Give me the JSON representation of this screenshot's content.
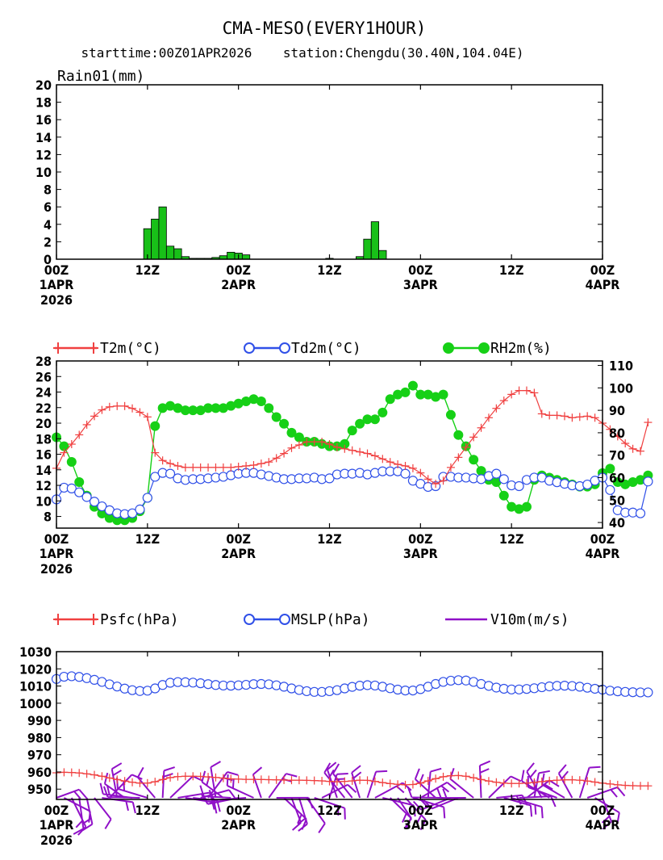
{
  "title": "CMA-MESO(EVERY1HOUR)",
  "subtitle": "starttime:00Z01APR2026    station:Chengdu(30.40N,104.04E)",
  "xticks": {
    "top": [
      "00Z",
      "12Z",
      "00Z",
      "12Z",
      "00Z",
      "12Z",
      "00Z"
    ],
    "mid": [
      "1APR",
      "",
      "2APR",
      "",
      "3APR",
      "",
      "4APR"
    ],
    "bot": [
      "2026",
      "",
      "",
      "",
      "",
      "",
      ""
    ]
  },
  "colors": {
    "temp": "#f04040",
    "dew": "#3050e8",
    "rh": "#16d016",
    "rain": "#18c018",
    "wind": "#9010c8"
  },
  "chart_data": [
    {
      "type": "bar",
      "label": "Rain01(mm)",
      "ylim": [
        0,
        20
      ],
      "yticks": [
        0,
        2,
        4,
        6,
        8,
        10,
        12,
        14,
        16,
        18,
        20
      ],
      "x_hours": [
        12,
        13,
        14,
        15,
        16,
        17,
        18,
        19,
        20,
        21,
        22,
        23,
        24,
        25,
        26,
        27,
        28,
        29,
        30,
        31,
        32,
        33,
        34,
        35,
        36,
        37,
        38,
        39,
        40,
        41,
        42,
        43,
        44
      ],
      "values": [
        3.5,
        4.6,
        6.0,
        1.5,
        1.2,
        0.3,
        0.1,
        0.1,
        0.1,
        0.2,
        0.4,
        0.8,
        0.7,
        0.5,
        0,
        0,
        0,
        0,
        0,
        0,
        0,
        0,
        0,
        0,
        0.1,
        0,
        0,
        0,
        0.3,
        2.3,
        4.3,
        1.0,
        0
      ]
    },
    {
      "type": "line",
      "ylim_left": [
        6.5,
        28
      ],
      "yticks_left": [
        8,
        10,
        12,
        14,
        16,
        18,
        20,
        22,
        24,
        26,
        28
      ],
      "ylim_right": [
        37.5,
        112
      ],
      "yticks_right": [
        40,
        50,
        60,
        70,
        80,
        90,
        100,
        110
      ],
      "series": [
        {
          "name": "T2m(°C)",
          "axis": "left",
          "values": [
            14.2,
            16.2,
            17.3,
            18.5,
            19.8,
            20.9,
            21.7,
            22.1,
            22.2,
            22.2,
            21.9,
            21.4,
            20.8,
            16.2,
            15.2,
            14.8,
            14.5,
            14.3,
            14.3,
            14.3,
            14.3,
            14.3,
            14.3,
            14.3,
            14.4,
            14.5,
            14.6,
            14.8,
            15.0,
            15.5,
            16.1,
            16.8,
            17.2,
            17.6,
            17.6,
            17.6,
            17.3,
            16.9,
            16.7,
            16.5,
            16.3,
            16.1,
            15.8,
            15.4,
            15.0,
            14.7,
            14.5,
            14.2,
            13.6,
            12.8,
            12.2,
            12.6,
            14.3,
            15.6,
            16.9,
            18.2,
            19.4,
            20.7,
            21.9,
            22.9,
            23.7,
            24.2,
            24.2,
            23.9,
            21.2,
            21.0,
            21.0,
            20.9,
            20.7,
            20.8,
            20.9,
            20.7,
            20.0,
            19.2,
            18.3,
            17.4,
            16.7,
            16.4,
            20.1
          ]
        },
        {
          "name": "Td2m(°C)",
          "axis": "left",
          "values": [
            10.2,
            11.7,
            11.6,
            11.1,
            10.5,
            9.9,
            9.3,
            8.8,
            8.4,
            8.3,
            8.4,
            8.9,
            10.4,
            13.1,
            13.6,
            13.5,
            12.9,
            12.7,
            12.8,
            12.8,
            12.9,
            13.0,
            13.1,
            13.3,
            13.5,
            13.6,
            13.6,
            13.4,
            13.2,
            13.0,
            12.8,
            12.8,
            12.9,
            12.9,
            13.0,
            12.8,
            12.9,
            13.4,
            13.5,
            13.5,
            13.6,
            13.4,
            13.6,
            13.8,
            13.8,
            13.8,
            13.5,
            12.6,
            12.2,
            11.8,
            11.9,
            13.1,
            13.1,
            13.0,
            13.0,
            12.9,
            12.8,
            13.2,
            13.5,
            12.8,
            12.0,
            11.9,
            12.7,
            13.0,
            13.0,
            12.6,
            12.4,
            12.2,
            12.0,
            11.9,
            12.1,
            12.6,
            13.0,
            11.4,
            8.8,
            8.5,
            8.5,
            8.4,
            12.5
          ]
        },
        {
          "name": "RH2m(%)",
          "axis": "right",
          "values": [
            78,
            74,
            67,
            58,
            52,
            47,
            44,
            42,
            41,
            41,
            42,
            45,
            51,
            83,
            91,
            92,
            91,
            90,
            90,
            90,
            91,
            91,
            91,
            92,
            93,
            94,
            95,
            94,
            91,
            87,
            84,
            80,
            78,
            76,
            76,
            75,
            74,
            74,
            75,
            81,
            84,
            86,
            86,
            89,
            95,
            97,
            98,
            101,
            97,
            97,
            96,
            97,
            88,
            79,
            74,
            68,
            63,
            59,
            58,
            52,
            47,
            46,
            47,
            59,
            61,
            60,
            59,
            58,
            57,
            56,
            56,
            57,
            62,
            64,
            58,
            57,
            58,
            59,
            61
          ]
        },
        {
          "name": "Psfc(hPa)",
          "axis": "left",
          "panel": "pressure",
          "values": [
            959.5,
            959.8,
            959.7,
            959.4,
            958.9,
            958.3,
            957.5,
            956.5,
            955.6,
            954.7,
            954.0,
            953.5,
            953.5,
            954.3,
            955.6,
            956.7,
            957.3,
            957.5,
            957.5,
            957.4,
            957.1,
            956.8,
            956.4,
            956.0,
            955.8,
            955.7,
            955.7,
            955.6,
            955.5,
            955.4,
            955.3,
            955.2,
            955.2,
            955.1,
            955.0,
            954.8,
            954.5,
            954.3,
            954.5,
            954.8,
            955.2,
            955.1,
            954.5,
            953.8,
            953.2,
            952.8,
            952.5,
            952.7,
            953.5,
            954.8,
            956.1,
            957.2,
            957.8,
            957.9,
            957.5,
            956.6,
            955.6,
            954.7,
            954.0,
            953.5,
            953.3,
            953.3,
            953.5,
            953.9,
            954.4,
            954.9,
            955.2,
            955.4,
            955.4,
            955.2,
            954.7,
            954.1,
            953.5,
            953.0,
            952.5,
            952.2,
            952.0,
            951.9,
            951.9
          ]
        },
        {
          "name": "MSLP(hPa)",
          "axis": "left",
          "panel": "pressure",
          "values": [
            1014.1,
            1015.4,
            1015.7,
            1015.3,
            1014.6,
            1013.6,
            1012.4,
            1011.0,
            1009.7,
            1008.5,
            1007.6,
            1007.1,
            1007.3,
            1008.6,
            1010.6,
            1011.9,
            1012.3,
            1012.2,
            1012.0,
            1011.6,
            1011.1,
            1010.6,
            1010.3,
            1010.2,
            1010.4,
            1010.7,
            1011.1,
            1011.2,
            1011.0,
            1010.4,
            1009.6,
            1008.6,
            1007.7,
            1007.0,
            1006.6,
            1006.6,
            1007.0,
            1007.6,
            1008.6,
            1009.5,
            1010.2,
            1010.5,
            1010.3,
            1009.6,
            1008.7,
            1007.9,
            1007.4,
            1007.4,
            1008.2,
            1009.6,
            1011.2,
            1012.4,
            1013.1,
            1013.4,
            1013.2,
            1012.4,
            1011.2,
            1010.1,
            1009.1,
            1008.4,
            1008.0,
            1008.0,
            1008.3,
            1008.7,
            1009.3,
            1009.8,
            1010.1,
            1010.2,
            1010.0,
            1009.6,
            1009.0,
            1008.4,
            1007.9,
            1007.3,
            1006.9,
            1006.6,
            1006.4,
            1006.3,
            1006.3
          ]
        }
      ]
    },
    {
      "type": "line",
      "ylim": [
        944,
        1030
      ],
      "yticks": [
        950,
        960,
        970,
        980,
        990,
        1000,
        1010,
        1020,
        1030
      ],
      "legend": [
        "Psfc(hPa)",
        "MSLP(hPa)",
        "V10m(m/s)"
      ]
    }
  ]
}
